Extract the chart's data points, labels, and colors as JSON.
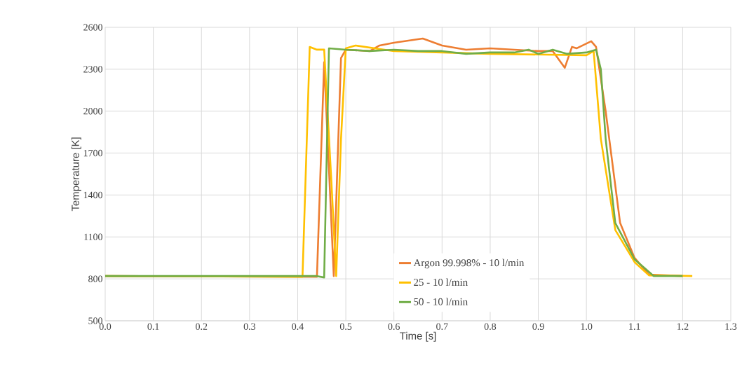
{
  "chart_data": {
    "type": "line",
    "xlabel": "Time [s]",
    "ylabel": "Temperature [K]",
    "xlim": [
      0,
      1.3
    ],
    "ylim": [
      500,
      2600
    ],
    "xticks": [
      {
        "value": 0,
        "label": "0.0"
      },
      0.1,
      0.2,
      0.3,
      0.4,
      0.5,
      0.6,
      0.7,
      0.8,
      0.9,
      {
        "value": 1,
        "label": "1.0"
      },
      1.1,
      1.2,
      1.3
    ],
    "yticks": [
      500,
      800,
      1100,
      1400,
      1700,
      2000,
      2300,
      2600
    ],
    "grid": true,
    "legend": "bottom",
    "marker": "none",
    "line_style": "solid",
    "series": [
      {
        "name": "Argon 99.998% - 10 l/min",
        "color": "#ed7d31",
        "x": [
          0,
          0.44,
          0.455,
          0.475,
          0.49,
          0.5,
          0.55,
          0.57,
          0.6,
          0.66,
          0.7,
          0.75,
          0.8,
          0.85,
          0.9,
          0.93,
          0.955,
          0.97,
          0.98,
          1.01,
          1.02,
          1.04,
          1.07,
          1.1,
          1.13,
          1.2
        ],
        "values": [
          820,
          815,
          2350,
          820,
          2380,
          2440,
          2430,
          2470,
          2490,
          2520,
          2470,
          2440,
          2450,
          2440,
          2430,
          2430,
          2310,
          2460,
          2450,
          2500,
          2460,
          2000,
          1200,
          950,
          830,
          820
        ]
      },
      {
        "name": "25 - 10 l/min",
        "color": "#ffc000",
        "x": [
          0,
          0.41,
          0.425,
          0.44,
          0.455,
          0.47,
          0.48,
          0.49,
          0.5,
          0.52,
          0.6,
          0.8,
          1.0,
          1.015,
          1.03,
          1.06,
          1.1,
          1.13,
          1.22
        ],
        "values": [
          820,
          815,
          2460,
          2440,
          2440,
          1500,
          820,
          1800,
          2450,
          2470,
          2430,
          2410,
          2400,
          2430,
          1800,
          1150,
          920,
          825,
          820
        ]
      },
      {
        "name": "50 - 10 l/min",
        "color": "#70ad47",
        "x": [
          0,
          0.44,
          0.455,
          0.465,
          0.5,
          0.55,
          0.6,
          0.65,
          0.7,
          0.75,
          0.8,
          0.85,
          0.88,
          0.9,
          0.93,
          0.96,
          1.0,
          1.02,
          1.03,
          1.04,
          1.06,
          1.1,
          1.14,
          1.2
        ],
        "values": [
          820,
          820,
          810,
          2450,
          2440,
          2430,
          2440,
          2430,
          2430,
          2410,
          2420,
          2420,
          2440,
          2410,
          2440,
          2410,
          2420,
          2440,
          2300,
          1800,
          1200,
          940,
          820,
          820
        ]
      }
    ]
  }
}
